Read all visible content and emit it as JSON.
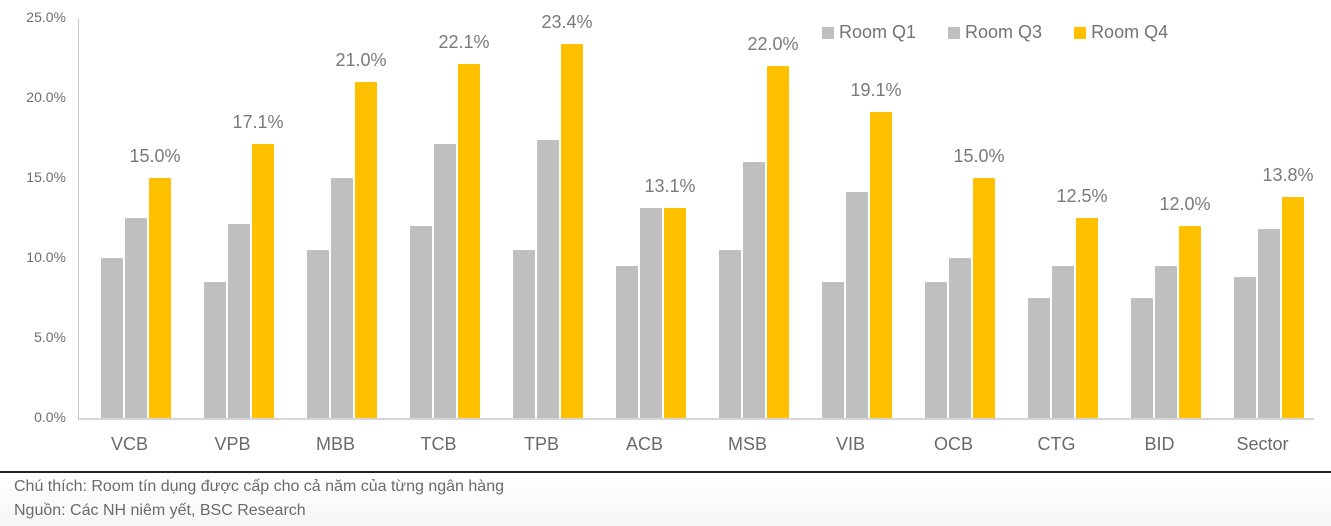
{
  "chart_data": {
    "type": "bar",
    "title": "",
    "xlabel": "",
    "ylabel": "",
    "ylim": [
      0,
      25
    ],
    "yticks": [
      "0.0%",
      "5.0%",
      "10.0%",
      "15.0%",
      "20.0%",
      "25.0%"
    ],
    "grid": false,
    "legend_position": "top-right",
    "categories": [
      "VCB",
      "VPB",
      "MBB",
      "TCB",
      "TPB",
      "ACB",
      "MSB",
      "VIB",
      "OCB",
      "CTG",
      "BID",
      "Sector"
    ],
    "series": [
      {
        "name": "Room Q1",
        "color": "#bfbfbf",
        "values": [
          10.0,
          8.5,
          10.5,
          12.0,
          10.5,
          9.5,
          10.5,
          8.5,
          8.5,
          7.5,
          7.5,
          8.8
        ]
      },
      {
        "name": "Room Q3",
        "color": "#bfbfbf",
        "values": [
          12.5,
          12.1,
          15.0,
          17.1,
          17.4,
          13.1,
          16.0,
          14.1,
          10.0,
          9.5,
          9.5,
          11.8
        ]
      },
      {
        "name": "Room Q4",
        "color": "#ffc000",
        "values": [
          15.0,
          17.1,
          21.0,
          22.1,
          23.4,
          13.1,
          22.0,
          19.1,
          15.0,
          12.5,
          12.0,
          13.8
        ]
      }
    ],
    "data_labels": {
      "series": "Room Q4",
      "labels": [
        "15.0%",
        "17.1%",
        "21.0%",
        "22.1%",
        "23.4%",
        "13.1%",
        "22.0%",
        "19.1%",
        "15.0%",
        "12.5%",
        "12.0%",
        "13.8%"
      ]
    }
  },
  "legend": {
    "items": [
      {
        "label": "Room Q1",
        "color": "#bfbfbf"
      },
      {
        "label": "Room Q3",
        "color": "#bfbfbf"
      },
      {
        "label": "Room Q4",
        "color": "#ffc000"
      }
    ]
  },
  "notes": {
    "caption": "Chú thích: Room tín dụng được cấp cho cả năm của từng ngân hàng",
    "source": "Nguồn: Các NH niêm yết, BSC Research"
  }
}
